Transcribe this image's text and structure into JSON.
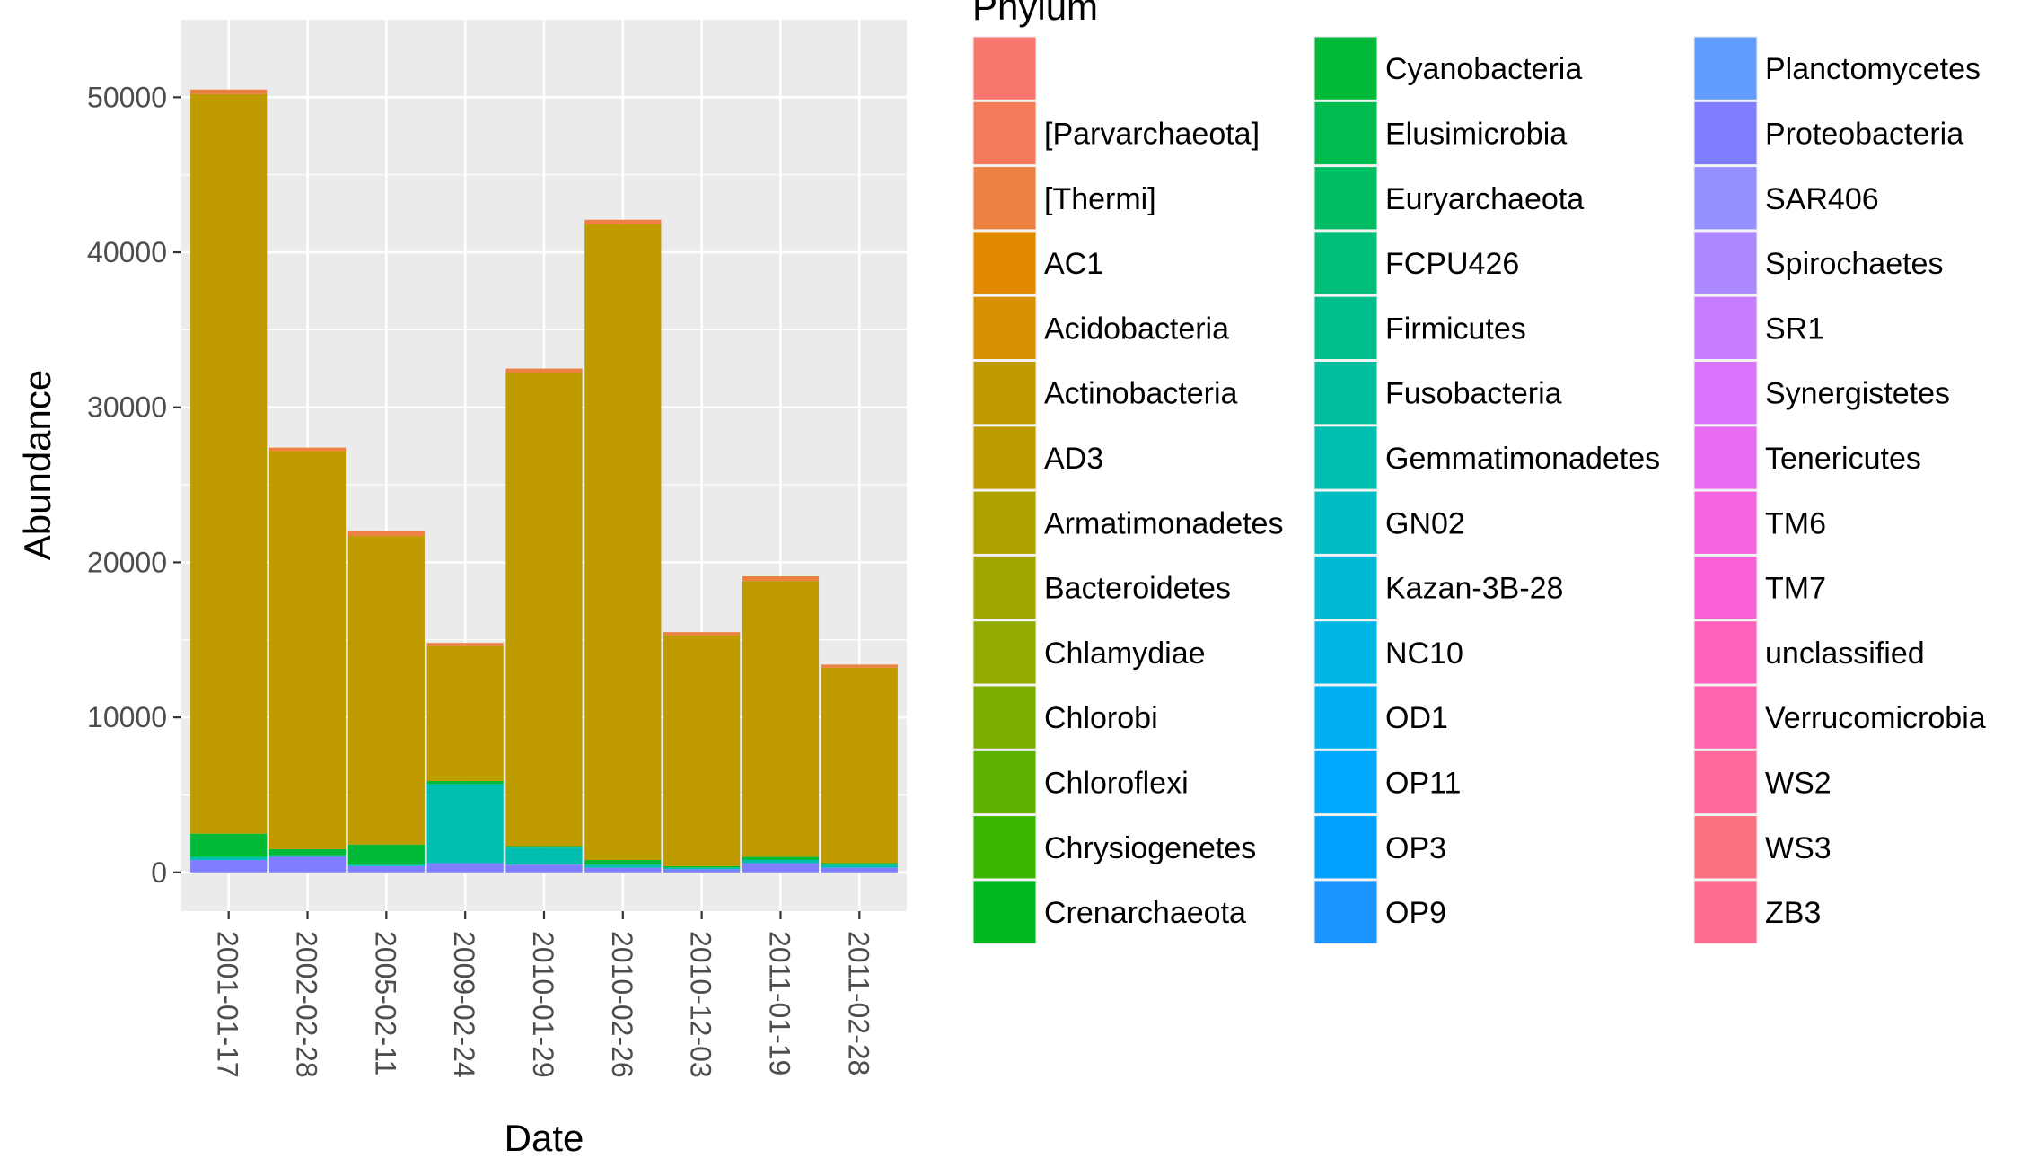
{
  "chart_data": {
    "type": "bar",
    "stacked": true,
    "title": "",
    "xlabel": "Date",
    "ylabel": "Abundance",
    "x_tick_rotation": "vertical",
    "ylim": [
      -2500,
      55000
    ],
    "yticks": [
      0,
      10000,
      20000,
      30000,
      40000,
      50000
    ],
    "ytick_labels": [
      "0",
      "10000",
      "20000",
      "30000",
      "40000",
      "50000"
    ],
    "grid": true,
    "background": "#EBEBEB",
    "legend": {
      "title": "Phylum",
      "placement": "right",
      "columns": 3,
      "entries": [
        {
          "label": "",
          "color": "#F8766D"
        },
        {
          "label": "[Parvarchaeota]",
          "color": "#F37B59"
        },
        {
          "label": "[Thermi]",
          "color": "#ED8141"
        },
        {
          "label": "AC1",
          "color": "#E38900"
        },
        {
          "label": "Acidobacteria",
          "color": "#D89000"
        },
        {
          "label": "Actinobacteria",
          "color": "#C09B00"
        },
        {
          "label": "AD3",
          "color": "#BE9C00"
        },
        {
          "label": "Armatimonadetes",
          "color": "#AFA100"
        },
        {
          "label": "Bacteroidetes",
          "color": "#A3A500"
        },
        {
          "label": "Chlamydiae",
          "color": "#93AA00"
        },
        {
          "label": "Chlorobi",
          "color": "#7CAE00"
        },
        {
          "label": "Chloroflexi",
          "color": "#5EB300"
        },
        {
          "label": "Chrysiogenetes",
          "color": "#39B600"
        },
        {
          "label": "Crenarchaeota",
          "color": "#00B81F"
        },
        {
          "label": "Cyanobacteria",
          "color": "#00BA38"
        },
        {
          "label": "Elusimicrobia",
          "color": "#00BB4E"
        },
        {
          "label": "Euryarchaeota",
          "color": "#00BC63"
        },
        {
          "label": "FCPU426",
          "color": "#00BD78"
        },
        {
          "label": "Firmicutes",
          "color": "#00BE8C"
        },
        {
          "label": "Fusobacteria",
          "color": "#00BF9E"
        },
        {
          "label": "Gemmatimonadetes",
          "color": "#00BFB1"
        },
        {
          "label": "GN02",
          "color": "#00BDC4"
        },
        {
          "label": "Kazan-3B-28",
          "color": "#00BAD5"
        },
        {
          "label": "NC10",
          "color": "#00B6E4"
        },
        {
          "label": "OD1",
          "color": "#00B0F0"
        },
        {
          "label": "OP11",
          "color": "#00A9FF"
        },
        {
          "label": "OP3",
          "color": "#00A0FF"
        },
        {
          "label": "OP9",
          "color": "#1C94FF"
        },
        {
          "label": "Planctomycetes",
          "color": "#619CFF"
        },
        {
          "label": "Proteobacteria",
          "color": "#7F7EFF"
        },
        {
          "label": "SAR406",
          "color": "#9590FF"
        },
        {
          "label": "Spirochaetes",
          "color": "#AC88FF"
        },
        {
          "label": "SR1",
          "color": "#C77CFF"
        },
        {
          "label": "Synergistetes",
          "color": "#DB72FB"
        },
        {
          "label": "Tenericutes",
          "color": "#E86BF3"
        },
        {
          "label": "TM6",
          "color": "#F564E3"
        },
        {
          "label": "TM7",
          "color": "#FB61D7"
        },
        {
          "label": "unclassified",
          "color": "#FF62BC"
        },
        {
          "label": "Verrucomicrobia",
          "color": "#FF65AE"
        },
        {
          "label": "WS2",
          "color": "#FF699C"
        },
        {
          "label": "WS3",
          "color": "#FC717F"
        },
        {
          "label": "ZB3",
          "color": "#FF6C91"
        }
      ]
    },
    "categories": [
      "2001-01-17",
      "2002-02-28",
      "2005-02-11",
      "2009-02-24",
      "2010-01-29",
      "2010-02-26",
      "2010-12-03",
      "2011-01-19",
      "2011-02-28"
    ],
    "series": [
      {
        "name": "Proteobacteria",
        "color": "#7F7EFF",
        "values": [
          800,
          1000,
          400,
          600,
          500,
          300,
          200,
          600,
          300
        ]
      },
      {
        "name": "Gemmatimonadetes",
        "color": "#00BFB1",
        "values": [
          200,
          100,
          100,
          5100,
          1100,
          200,
          100,
          200,
          200
        ]
      },
      {
        "name": "Cyanobacteria",
        "color": "#00BA38",
        "values": [
          1500,
          400,
          1300,
          200,
          100,
          300,
          100,
          200,
          100
        ]
      },
      {
        "name": "Actinobacteria",
        "color": "#C09B00",
        "values": [
          47700,
          25700,
          19900,
          8700,
          30500,
          41000,
          14900,
          17800,
          12600
        ]
      },
      {
        "name": "[Thermi]",
        "color": "#ED8141",
        "values": [
          300,
          200,
          300,
          200,
          300,
          300,
          200,
          300,
          200
        ]
      }
    ]
  }
}
